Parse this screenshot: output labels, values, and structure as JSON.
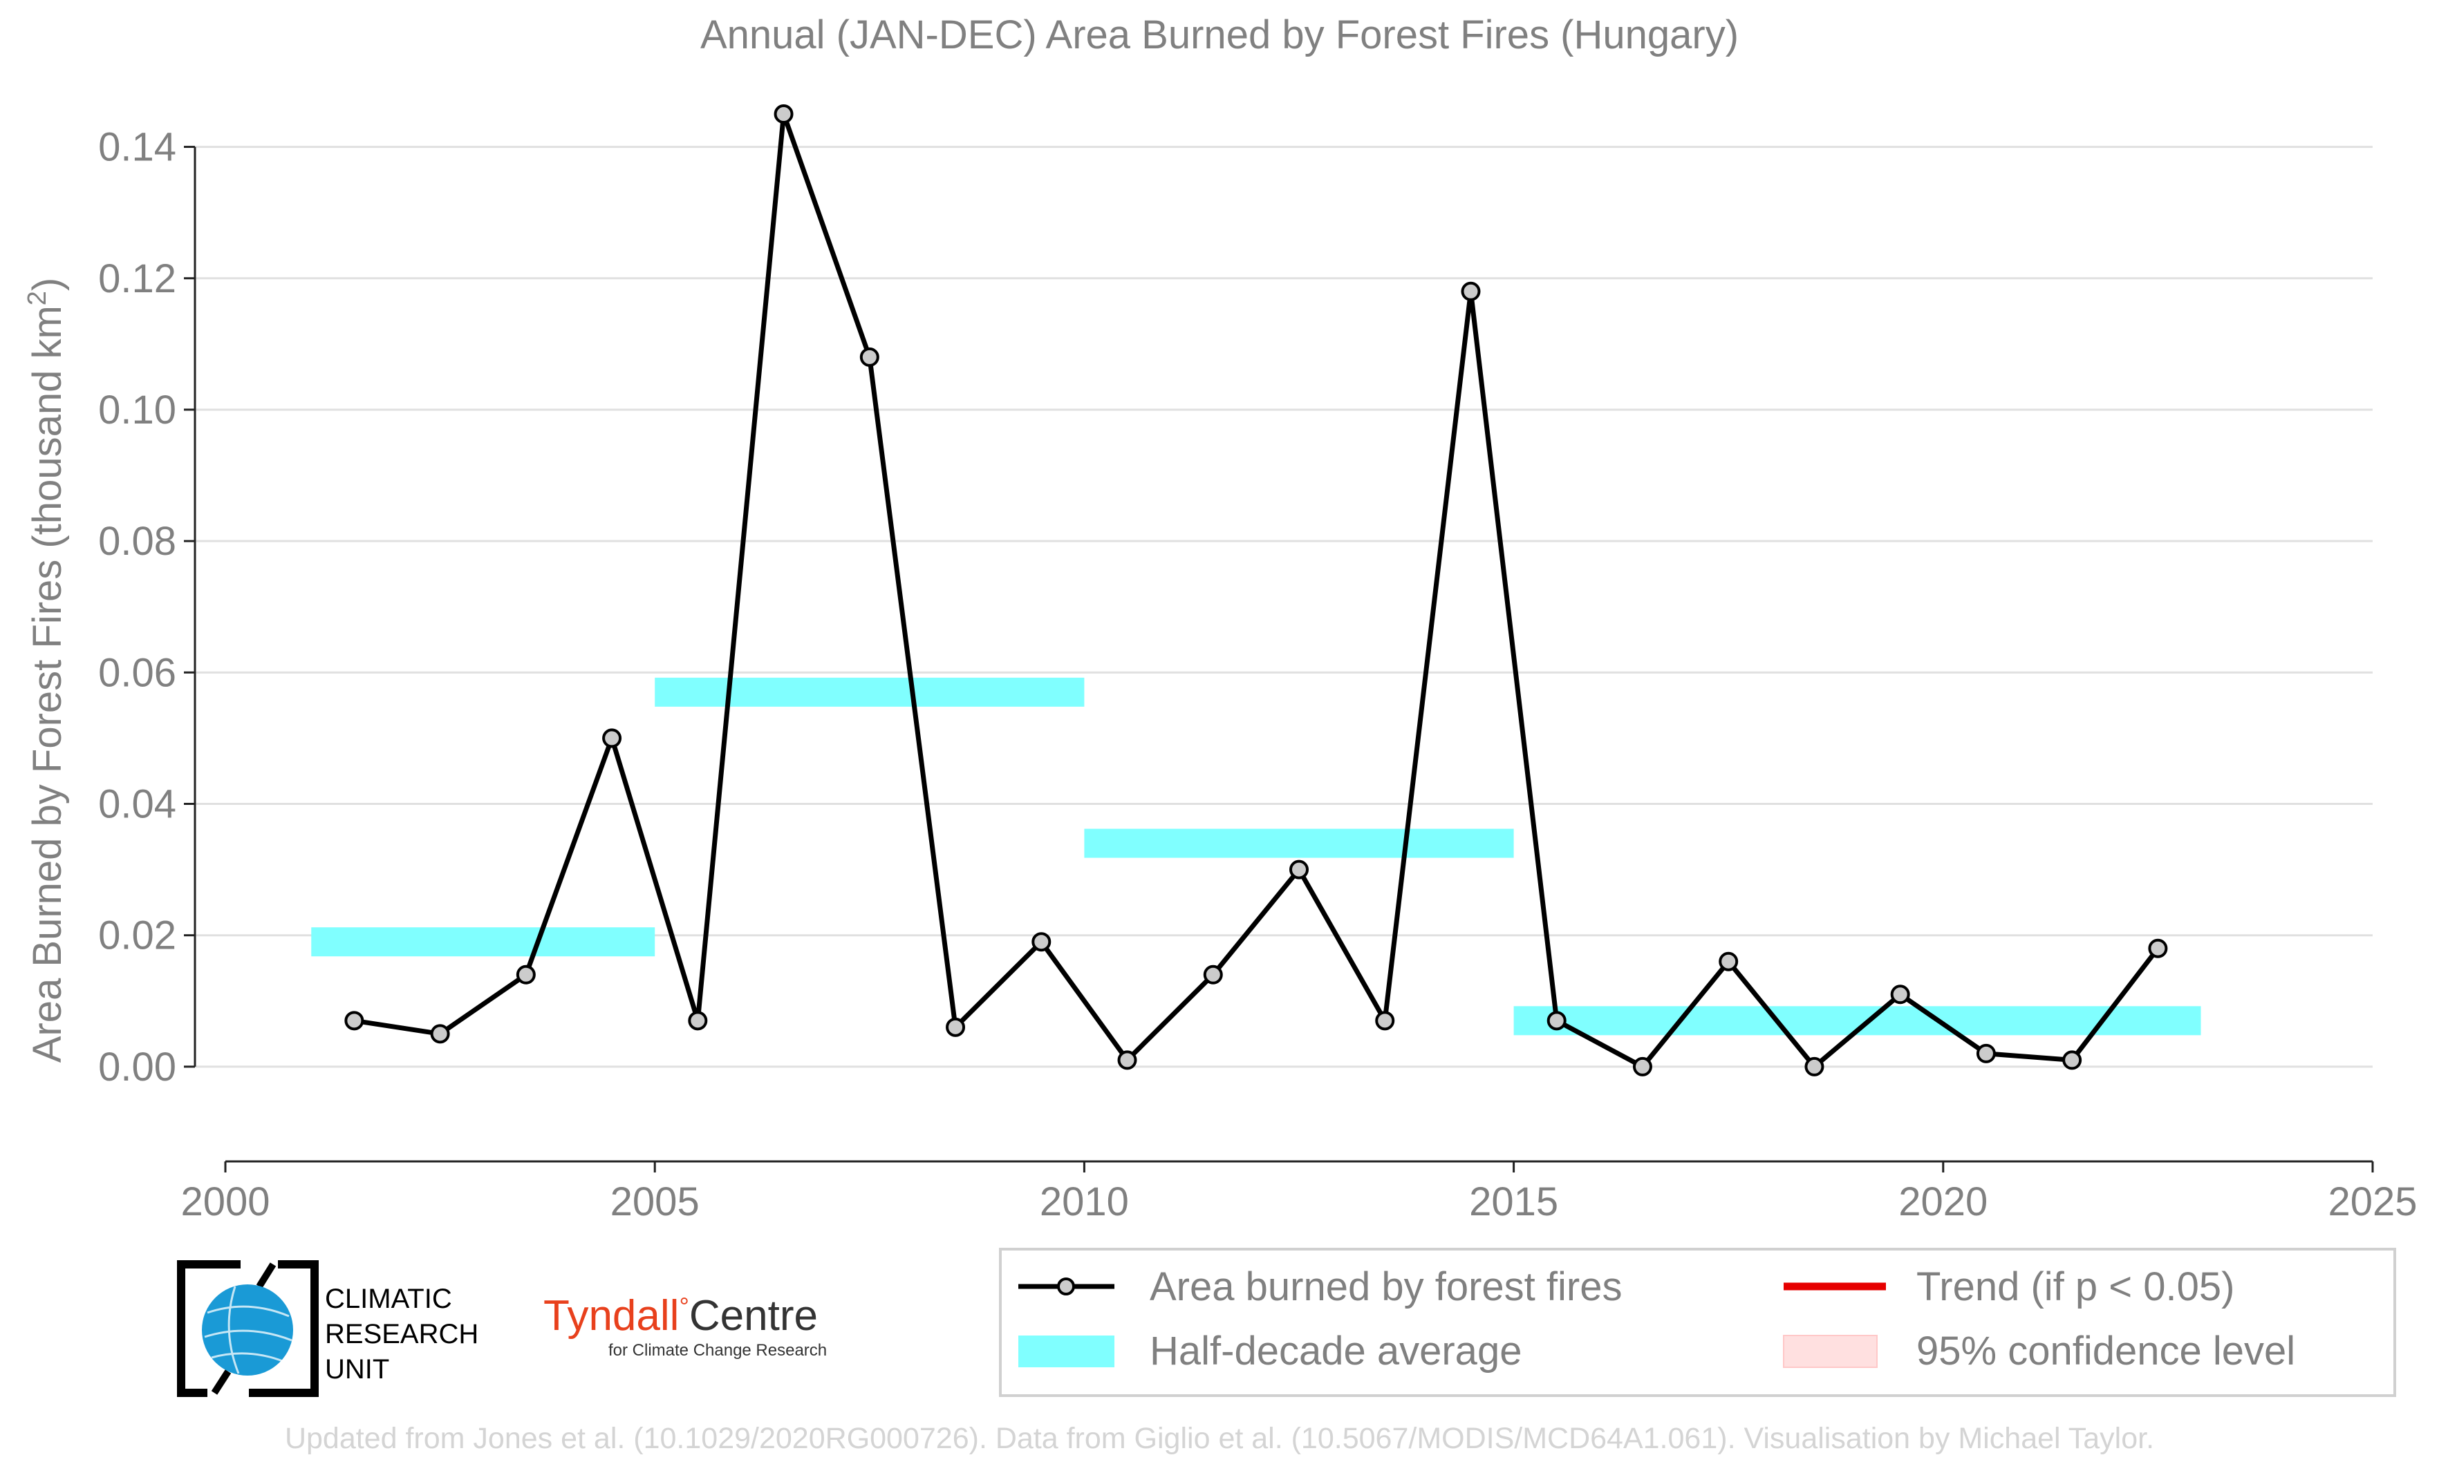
{
  "chart_data": {
    "type": "line",
    "title": "Annual (JAN-DEC) Area Burned by Forest Fires (Hungary)",
    "ylabel": "Area Burned by Forest Fires (thousand km",
    "ylabel_sup": "2",
    "ylabel_end": ")",
    "xlabel": "",
    "xlim": [
      2000,
      2025
    ],
    "ylim": [
      -0.012,
      0.147
    ],
    "x_ticks": [
      2000,
      2005,
      2010,
      2015,
      2020,
      2025
    ],
    "y_ticks": [
      0.0,
      0.02,
      0.04,
      0.06,
      0.08,
      0.1,
      0.12,
      0.14
    ],
    "y_tick_labels": [
      "0.00",
      "0.02",
      "0.04",
      "0.06",
      "0.08",
      "0.10",
      "0.12",
      "0.14"
    ],
    "grid": "horizontal",
    "series": [
      {
        "name": "Area burned by forest fires",
        "color": "#000000",
        "marker_fill": "#cccccc",
        "x": [
          2001.5,
          2002.5,
          2003.5,
          2004.5,
          2005.5,
          2006.5,
          2007.5,
          2008.5,
          2009.5,
          2010.5,
          2011.5,
          2012.5,
          2013.5,
          2014.5,
          2015.5,
          2016.5,
          2017.5,
          2018.5,
          2019.5,
          2020.5,
          2021.5,
          2022.5
        ],
        "y": [
          0.007,
          0.005,
          0.014,
          0.05,
          0.007,
          0.145,
          0.108,
          0.006,
          0.019,
          0.001,
          0.014,
          0.03,
          0.007,
          0.118,
          0.007,
          0.0,
          0.016,
          0.0,
          0.011,
          0.002,
          0.001,
          0.018
        ]
      }
    ],
    "half_decade_average": {
      "name": "Half-decade average",
      "color": "#80ffff",
      "segments": [
        {
          "x_start": 2001,
          "x_end": 2005,
          "value": 0.019
        },
        {
          "x_start": 2005,
          "x_end": 2010,
          "value": 0.057
        },
        {
          "x_start": 2010,
          "x_end": 2015,
          "value": 0.034
        },
        {
          "x_start": 2015,
          "x_end": 2023,
          "value": 0.007
        }
      ]
    },
    "legend": {
      "placement": "bottom-right",
      "entries": [
        {
          "label": "Area burned by forest fires",
          "kind": "line-marker",
          "color": "#000000"
        },
        {
          "label": "Trend (if p < 0.05)",
          "kind": "line",
          "color": "#e60000"
        },
        {
          "label": "Half-decade average",
          "kind": "band",
          "color": "#80ffff"
        },
        {
          "label": "95% confidence level",
          "kind": "band",
          "color": "#ffe0e0"
        }
      ]
    },
    "text_color": "#808080",
    "grid_color": "#e0e0e0"
  },
  "logos": {
    "cru": {
      "line1": "CLIMATIC",
      "line2": "RESEARCH",
      "line3": "UNIT",
      "globe_color": "#1a9ad6"
    },
    "tyndall": {
      "word1": "Tyndall",
      "degree": "°",
      "word2": "Centre",
      "tagline": "for Climate Change Research",
      "color": "#e8401c"
    }
  },
  "footer": {
    "credit": "Updated from Jones et al. (10.1029/2020RG000726). Data from Giglio et al. (10.5067/MODIS/MCD64A1.061). Visualisation by Michael Taylor."
  }
}
